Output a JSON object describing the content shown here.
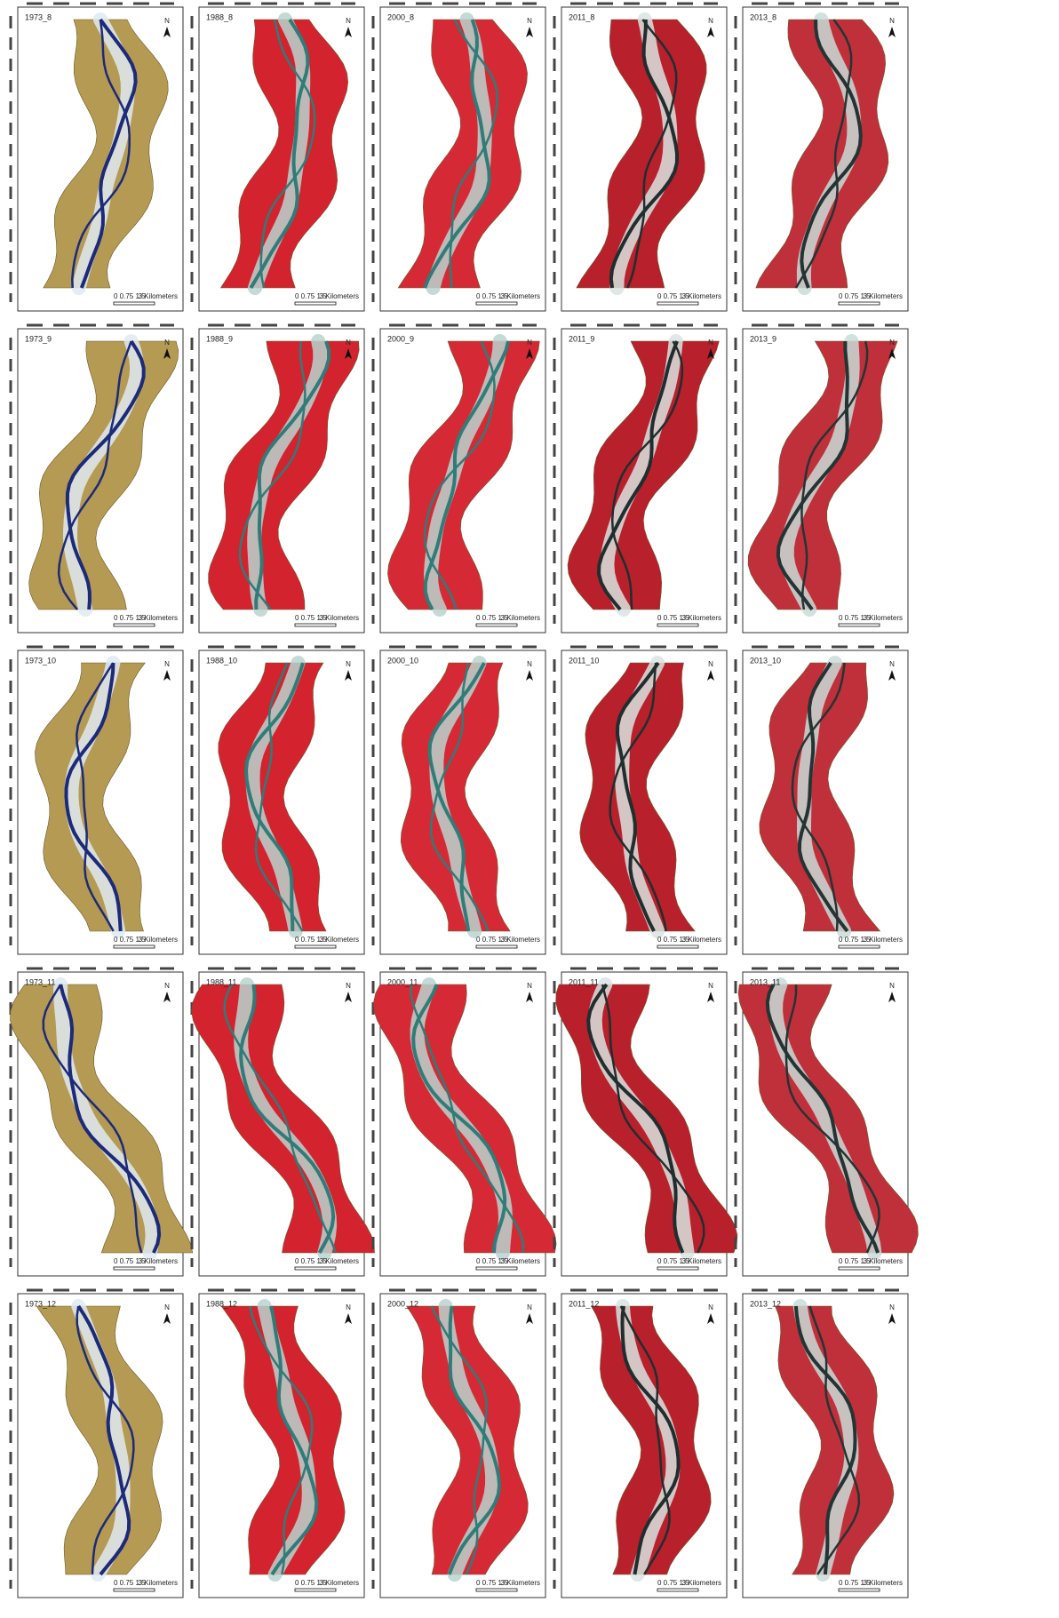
{
  "panels": [
    [
      "1973_8",
      "1988_8",
      "2000_8",
      "2011_8",
      "2013_8"
    ],
    [
      "1973_9",
      "1988_9",
      "2000_9",
      "2011_9",
      "2013_9"
    ],
    [
      "1973_10",
      "1988_10",
      "2000_10",
      "2011_10",
      "2013_10"
    ],
    [
      "1973_11",
      "1988_11",
      "2000_11",
      "2011_11",
      "2013_11"
    ],
    [
      "1973_12",
      "1988_12",
      "2000_12",
      "2011_12",
      "2013_12"
    ]
  ],
  "north_label": "N",
  "scale": {
    "ticks": "0 0.75 1.5",
    "unit": "3 Kilometers"
  }
}
